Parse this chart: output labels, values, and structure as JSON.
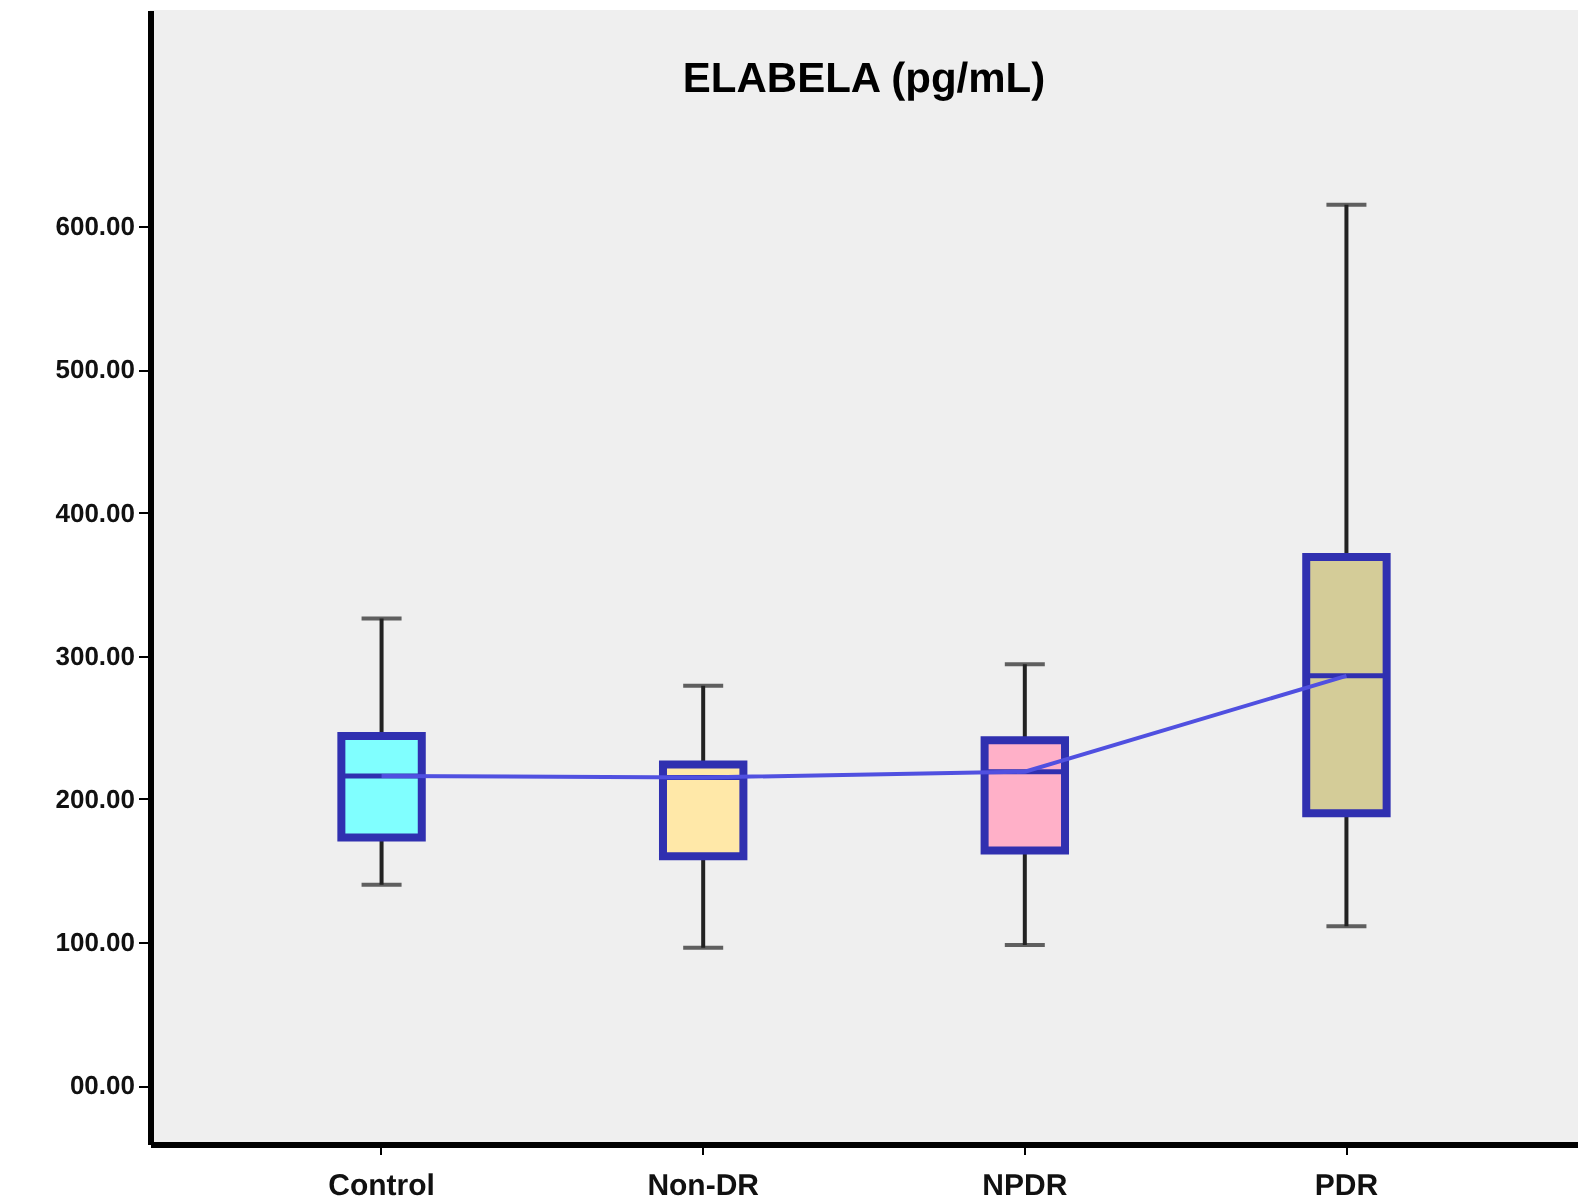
{
  "chart_data": {
    "type": "box",
    "title": "ELABELA (pg/mL)",
    "categories": [
      "Control",
      "Non-DR",
      "NPDR",
      "PDR"
    ],
    "ylim": [
      -41,
      751
    ],
    "yticks": [
      {
        "value": 0,
        "label": "00.00"
      },
      {
        "value": 100,
        "label": "100.00"
      },
      {
        "value": 200,
        "label": "200.00"
      },
      {
        "value": 300,
        "label": "300.00"
      },
      {
        "value": 400,
        "label": "400.00"
      },
      {
        "value": 500,
        "label": "500.00"
      },
      {
        "value": 600,
        "label": "600.00"
      }
    ],
    "series": [
      {
        "type": "box",
        "color": "#3030b0",
        "colors": [
          "#80ffff",
          "#ffe8a8",
          "#ffb0c8",
          "#d4cc98"
        ],
        "boxes": [
          {
            "low": 140,
            "q1": 173,
            "median": 216,
            "q3": 244,
            "high": 326
          },
          {
            "low": 96,
            "q1": 160,
            "median": 215,
            "q3": 224,
            "high": 279
          },
          {
            "low": 98,
            "q1": 164,
            "median": 219,
            "q3": 241,
            "high": 294
          },
          {
            "low": 111,
            "q1": 190,
            "median": 286,
            "q3": 369,
            "high": 615
          }
        ]
      },
      {
        "type": "line",
        "color": "#5050e0",
        "values": [
          216,
          215,
          219,
          286
        ]
      }
    ]
  }
}
